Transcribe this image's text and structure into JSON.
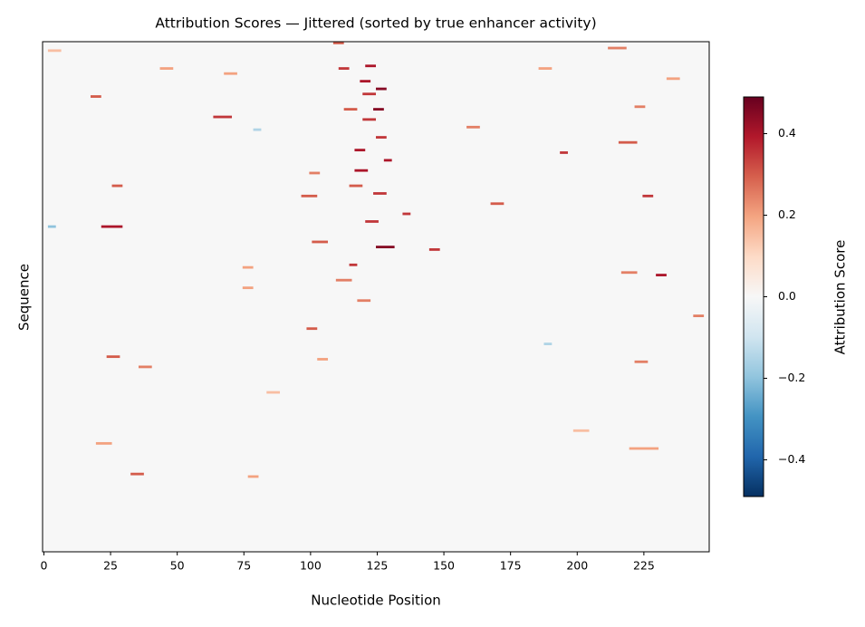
{
  "chart_data": {
    "type": "heatmap",
    "title": "Attribution Scores — Jittered (sorted by true enhancer activity)",
    "x_label": "Nucleotide Position",
    "y_label": "Sequence",
    "colorbar_label": "Attribution Score",
    "colormap": "RdBu_r",
    "xlim": [
      -0.5,
      249.5
    ],
    "ylim": [
      0,
      200
    ],
    "xticks": [
      0,
      25,
      50,
      75,
      100,
      125,
      150,
      175,
      200,
      225
    ],
    "clim": [
      -0.49,
      0.49
    ],
    "cticks": [
      {
        "value": -0.4,
        "label": "−0.4"
      },
      {
        "value": -0.2,
        "label": "−0.2"
      },
      {
        "value": 0,
        "label": "0.0"
      },
      0.2,
      0.4
    ],
    "cells": [
      [
        109,
        112,
        0,
        0.3
      ],
      [
        121,
        124,
        9,
        0.4
      ],
      [
        111,
        114,
        10,
        0.35
      ],
      [
        125,
        128,
        18,
        0.45
      ],
      [
        120,
        124,
        20,
        0.35
      ],
      [
        18,
        21,
        21,
        0.3
      ],
      [
        64,
        70,
        29,
        0.35
      ],
      [
        124,
        127,
        26,
        0.45
      ],
      [
        120,
        124,
        30,
        0.35
      ],
      [
        113,
        117,
        26,
        0.3
      ],
      [
        128,
        130,
        46,
        0.4
      ],
      [
        117,
        121,
        50,
        0.4
      ],
      [
        117,
        120,
        42,
        0.4
      ],
      [
        194,
        196,
        43,
        0.35
      ],
      [
        26,
        29,
        56,
        0.3
      ],
      [
        100,
        103,
        51,
        0.25
      ],
      [
        225,
        228,
        60,
        0.35
      ],
      [
        124,
        128,
        59,
        0.35
      ],
      [
        135,
        137,
        67,
        0.35
      ],
      [
        121,
        125,
        70,
        0.35
      ],
      [
        22,
        29,
        72,
        0.4
      ],
      [
        101,
        106,
        78,
        0.3
      ],
      [
        125,
        131,
        80,
        0.45
      ],
      [
        145,
        148,
        81,
        0.35
      ],
      [
        115,
        117,
        87,
        0.35
      ],
      [
        75,
        78,
        88,
        0.2
      ],
      [
        230,
        233,
        91,
        0.4
      ],
      [
        75,
        78,
        96,
        0.2
      ],
      [
        110,
        115,
        93,
        0.25
      ],
      [
        118,
        122,
        101,
        0.25
      ],
      [
        99,
        102,
        112,
        0.3
      ],
      [
        24,
        28,
        123,
        0.3
      ],
      [
        36,
        40,
        127,
        0.25
      ],
      [
        222,
        226,
        125,
        0.25
      ],
      [
        188,
        190,
        118,
        -0.15
      ],
      [
        2,
        4,
        72,
        -0.2
      ],
      [
        79,
        81,
        34,
        -0.15
      ],
      [
        33,
        37,
        169,
        0.3
      ],
      [
        220,
        230,
        159,
        0.2
      ],
      [
        20,
        25,
        157,
        0.2
      ],
      [
        77,
        80,
        170,
        0.2
      ],
      [
        216,
        222,
        39,
        0.3
      ],
      [
        222,
        225,
        25,
        0.25
      ],
      [
        168,
        172,
        63,
        0.3
      ],
      [
        159,
        163,
        33,
        0.25
      ],
      [
        97,
        102,
        60,
        0.3
      ],
      [
        234,
        238,
        14,
        0.2
      ],
      [
        212,
        218,
        2,
        0.25
      ],
      [
        186,
        190,
        10,
        0.2
      ],
      [
        44,
        48,
        10,
        0.2
      ],
      [
        68,
        72,
        12,
        0.2
      ],
      [
        125,
        128,
        37,
        0.35
      ],
      [
        119,
        122,
        15,
        0.4
      ],
      [
        115,
        119,
        56,
        0.3
      ],
      [
        103,
        106,
        124,
        0.2
      ],
      [
        84,
        88,
        137,
        0.15
      ],
      [
        199,
        204,
        152,
        0.15
      ],
      [
        244,
        247,
        107,
        0.25
      ],
      [
        217,
        222,
        90,
        0.25
      ],
      [
        2,
        6,
        3,
        0.15
      ]
    ]
  }
}
